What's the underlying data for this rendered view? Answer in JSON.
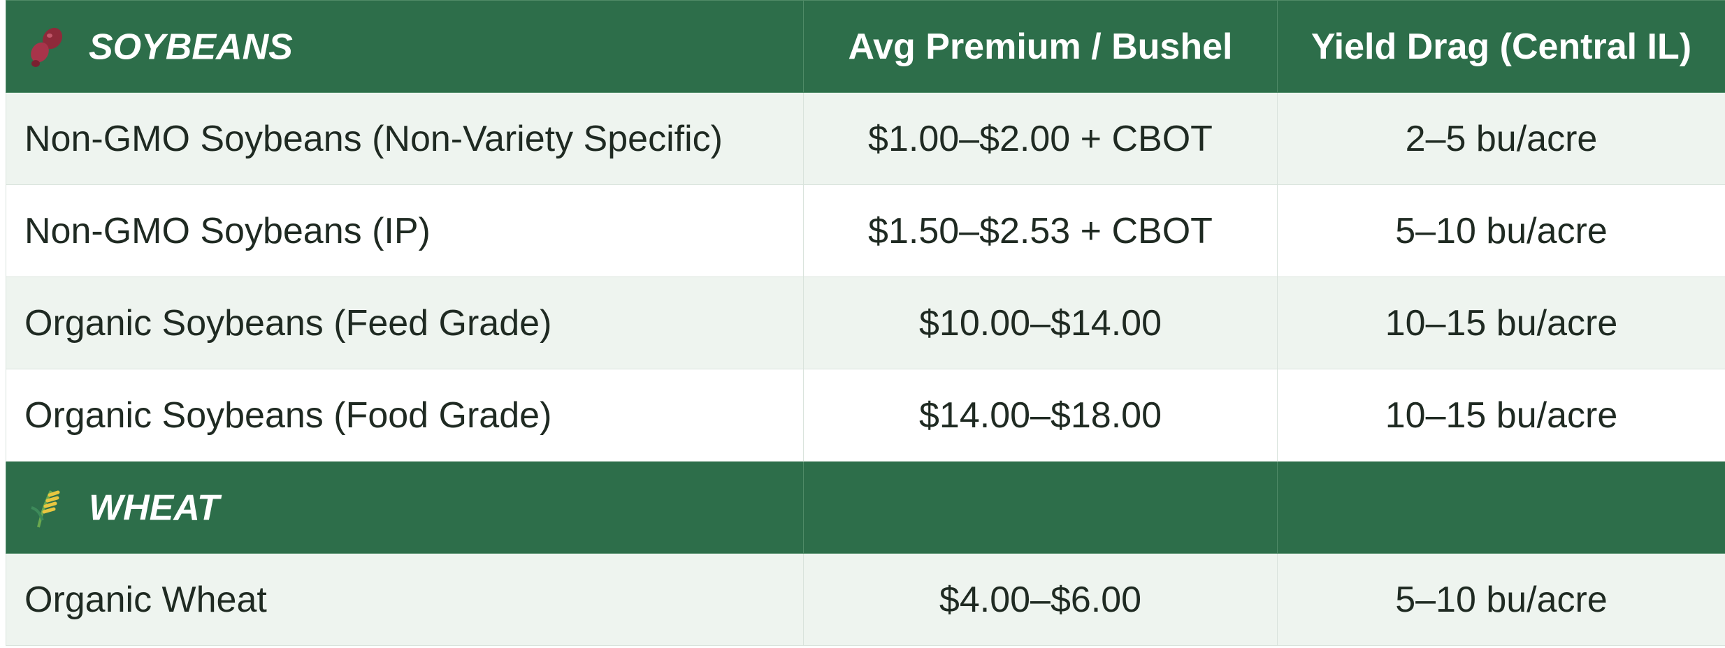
{
  "table": {
    "header": [
      "SOYBEANS",
      "Avg Premium / Bushel",
      "Yield Drag (Central IL)"
    ],
    "rows": [
      [
        "Non-GMO Soybeans (Non-Variety Specific)",
        "$1.00–$2.00 + CBOT",
        "2–5 bu/acre"
      ],
      [
        "Non-GMO Soybeans (IP)",
        "$1.50–$2.53 + CBOT",
        "5–10 bu/acre"
      ],
      [
        "Organic Soybeans (Feed Grade)",
        "$10.00–$14.00",
        "10–15 bu/acre"
      ],
      [
        "Organic Soybeans (Food Grade)",
        "$14.00–$18.00",
        "10–15 bu/acre"
      ]
    ],
    "section": "WHEAT",
    "section_rows": [
      [
        "Organic Wheat",
        "$4.00–$6.00",
        "5–10 bu/acre"
      ]
    ]
  }
}
